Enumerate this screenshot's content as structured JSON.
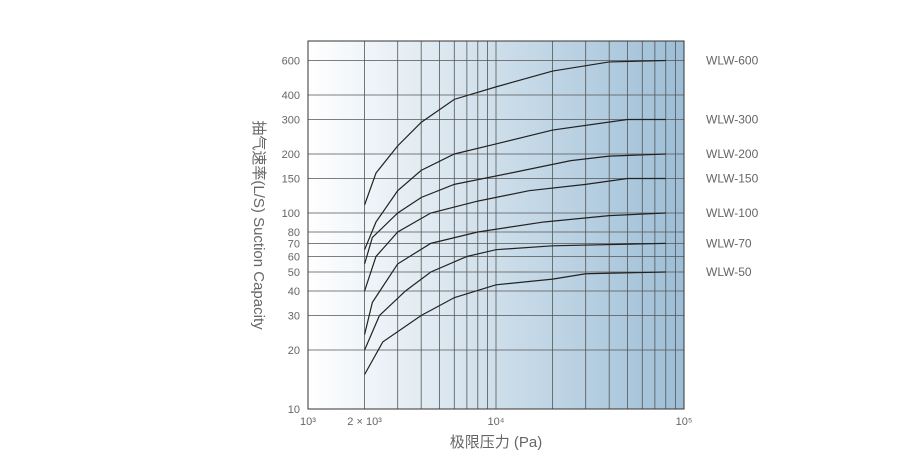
{
  "chart_data": {
    "type": "line",
    "xlabel": "极限压力 (Pa)",
    "ylabel": "抽气速率(L/S) Suction Capacity",
    "xscale": "log",
    "yscale": "log",
    "xlim": [
      1000,
      100000
    ],
    "ylim": [
      10,
      750
    ],
    "xticks": [
      {
        "v": 1000,
        "label": "10³"
      },
      {
        "v": 2000,
        "label": "2 × 10³"
      },
      {
        "v": 10000,
        "label": "10⁴"
      },
      {
        "v": 100000,
        "label": "10⁵"
      }
    ],
    "yticks": [
      10,
      20,
      30,
      40,
      50,
      60,
      70,
      80,
      100,
      150,
      200,
      300,
      400,
      600
    ],
    "xgrid": [
      2000,
      3000,
      4000,
      5000,
      6000,
      7000,
      8000,
      9000,
      10000,
      20000,
      30000,
      40000,
      50000,
      60000,
      70000,
      80000,
      90000
    ],
    "grid": true,
    "background_gradient": [
      "#ffffff",
      "#9dbed6"
    ],
    "line_color": "#222222",
    "series": [
      {
        "name": "WLW-600",
        "x": [
          2000,
          2300,
          3000,
          4000,
          6000,
          10000,
          20000,
          40000,
          80000
        ],
        "y": [
          110,
          160,
          220,
          290,
          380,
          440,
          530,
          590,
          600
        ]
      },
      {
        "name": "WLW-300",
        "x": [
          2000,
          2300,
          3000,
          4000,
          6000,
          10000,
          20000,
          50000,
          80000
        ],
        "y": [
          65,
          90,
          130,
          165,
          200,
          225,
          265,
          300,
          300
        ]
      },
      {
        "name": "WLW-200",
        "x": [
          2000,
          2200,
          3000,
          4000,
          6000,
          12000,
          25000,
          40000,
          80000
        ],
        "y": [
          55,
          75,
          100,
          120,
          140,
          160,
          185,
          195,
          200
        ]
      },
      {
        "name": "WLW-150",
        "x": [
          2000,
          2300,
          3000,
          4500,
          8000,
          15000,
          30000,
          50000,
          80000
        ],
        "y": [
          40,
          60,
          80,
          100,
          115,
          130,
          140,
          150,
          150
        ]
      },
      {
        "name": "WLW-100",
        "x": [
          2000,
          2200,
          3000,
          4500,
          8000,
          18000,
          40000,
          80000
        ],
        "y": [
          24,
          35,
          55,
          70,
          80,
          90,
          97,
          100
        ]
      },
      {
        "name": "WLW-70",
        "x": [
          2000,
          2400,
          3300,
          4500,
          7000,
          10000,
          20000,
          80000
        ],
        "y": [
          20,
          30,
          40,
          50,
          60,
          65,
          68,
          70
        ]
      },
      {
        "name": "WLW-50",
        "x": [
          2000,
          2500,
          4000,
          6000,
          10000,
          20000,
          30000,
          80000
        ],
        "y": [
          15,
          22,
          30,
          37,
          43,
          46,
          49,
          50
        ]
      }
    ]
  }
}
